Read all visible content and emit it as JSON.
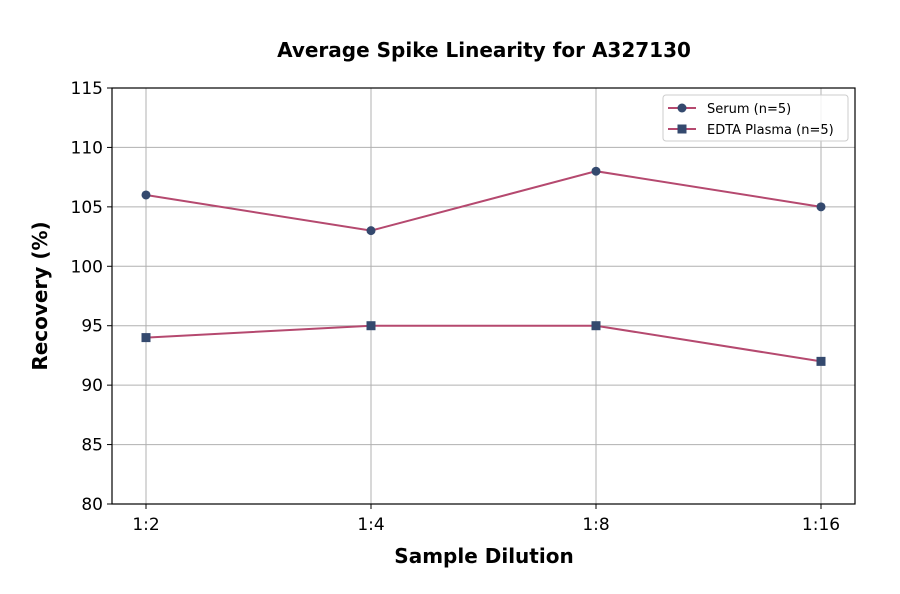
{
  "chart_data": {
    "type": "line",
    "title": "Average Spike Linearity for A327130",
    "xlabel": "Sample Dilution",
    "ylabel": "Recovery (%)",
    "categories": [
      "1:2",
      "1:4",
      "1:8",
      "1:16"
    ],
    "ylim": [
      80,
      115
    ],
    "yticks": [
      80,
      85,
      90,
      95,
      100,
      105,
      110,
      115
    ],
    "grid": true,
    "legend_position": "top-right",
    "series": [
      {
        "name": "Serum (n=5)",
        "values": [
          106,
          103,
          108,
          105
        ],
        "marker": "circle",
        "line_color": "#b5496f",
        "marker_color": "#34496e"
      },
      {
        "name": "EDTA Plasma (n=5)",
        "values": [
          94,
          95,
          95,
          92
        ],
        "marker": "square",
        "line_color": "#b5496f",
        "marker_color": "#34496e"
      }
    ]
  }
}
